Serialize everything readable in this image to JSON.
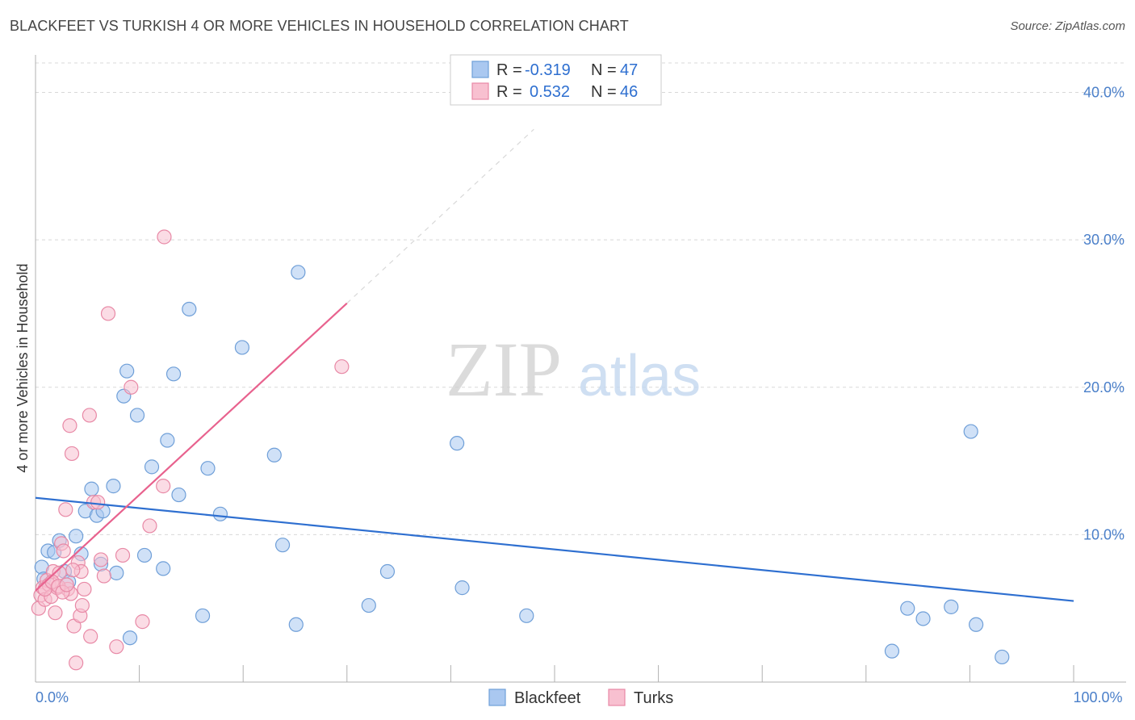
{
  "title": "BLACKFEET VS TURKISH 4 OR MORE VEHICLES IN HOUSEHOLD CORRELATION CHART",
  "source": "Source: ZipAtlas.com",
  "watermark": {
    "zip": "ZIP",
    "atlas": "atlas"
  },
  "legend": {
    "r_label": "R =",
    "n_label": "N =",
    "blackfeet": {
      "r": "-0.319",
      "n": "47"
    },
    "turks": {
      "r": "0.532",
      "n": "46"
    }
  },
  "chart_data": {
    "type": "scatter",
    "xlabel": "",
    "ylabel": "4 or more Vehicles in Household",
    "xlim": [
      0,
      100
    ],
    "ylim": [
      0,
      42
    ],
    "x_tick_labels": [
      {
        "value": 0,
        "label": "0.0%"
      },
      {
        "value": 100,
        "label": "100.0%"
      }
    ],
    "y_tick_labels": [
      {
        "value": 10,
        "label": "10.0%"
      },
      {
        "value": 20,
        "label": "20.0%"
      },
      {
        "value": 30,
        "label": "30.0%"
      },
      {
        "value": 40,
        "label": "40.0%"
      }
    ],
    "series": [
      {
        "name": "Blackfeet",
        "color": "#aac8f0",
        "stroke": "#6f9fd8",
        "line_color": "#2e6fd0",
        "trend": {
          "x0": 0,
          "y0": 12.5,
          "x1": 100,
          "y1": 5.5
        },
        "points": [
          [
            0.6,
            7.8
          ],
          [
            0.8,
            7.0
          ],
          [
            1.2,
            8.9
          ],
          [
            1.8,
            8.8
          ],
          [
            2.3,
            9.6
          ],
          [
            2.8,
            7.5
          ],
          [
            3.2,
            6.8
          ],
          [
            3.9,
            9.9
          ],
          [
            4.4,
            8.7
          ],
          [
            4.8,
            11.6
          ],
          [
            5.4,
            13.1
          ],
          [
            5.9,
            11.3
          ],
          [
            6.5,
            11.6
          ],
          [
            6.3,
            8.0
          ],
          [
            7.5,
            13.3
          ],
          [
            7.8,
            7.4
          ],
          [
            8.5,
            19.4
          ],
          [
            8.8,
            21.1
          ],
          [
            9.1,
            3.0
          ],
          [
            9.8,
            18.1
          ],
          [
            10.5,
            8.6
          ],
          [
            11.2,
            14.6
          ],
          [
            12.3,
            7.7
          ],
          [
            12.7,
            16.4
          ],
          [
            13.3,
            20.9
          ],
          [
            13.8,
            12.7
          ],
          [
            14.8,
            25.3
          ],
          [
            16.1,
            4.5
          ],
          [
            16.6,
            14.5
          ],
          [
            17.8,
            11.4
          ],
          [
            19.9,
            22.7
          ],
          [
            23.0,
            15.4
          ],
          [
            23.8,
            9.3
          ],
          [
            25.1,
            3.9
          ],
          [
            25.3,
            27.8
          ],
          [
            32.1,
            5.2
          ],
          [
            33.9,
            7.5
          ],
          [
            40.6,
            16.2
          ],
          [
            41.1,
            6.4
          ],
          [
            47.3,
            4.5
          ],
          [
            82.5,
            2.1
          ],
          [
            84.0,
            5.0
          ],
          [
            85.5,
            4.3
          ],
          [
            88.2,
            5.1
          ],
          [
            90.1,
            17.0
          ],
          [
            90.6,
            3.9
          ],
          [
            93.1,
            1.7
          ]
        ]
      },
      {
        "name": "Turks",
        "color": "#f8c0d0",
        "stroke": "#e889a6",
        "line_color": "#e8628e",
        "trend": {
          "x0": 0,
          "y0": 6.2,
          "x1": 30,
          "y1": 25.7
        },
        "trend_dashed": {
          "x0": 30,
          "y0": 25.7,
          "x1": 48,
          "y1": 37.5
        },
        "points": [
          [
            0.3,
            5.0
          ],
          [
            0.5,
            5.9
          ],
          [
            0.7,
            6.4
          ],
          [
            0.9,
            5.6
          ],
          [
            1.1,
            6.9
          ],
          [
            1.3,
            6.6
          ],
          [
            1.5,
            5.8
          ],
          [
            1.7,
            7.5
          ],
          [
            1.9,
            4.7
          ],
          [
            2.1,
            6.4
          ],
          [
            2.3,
            7.4
          ],
          [
            2.5,
            9.4
          ],
          [
            2.7,
            8.9
          ],
          [
            2.9,
            11.7
          ],
          [
            3.1,
            6.3
          ],
          [
            3.3,
            17.4
          ],
          [
            3.4,
            6.0
          ],
          [
            3.5,
            15.5
          ],
          [
            3.7,
            3.8
          ],
          [
            3.9,
            1.3
          ],
          [
            4.1,
            8.1
          ],
          [
            4.3,
            4.5
          ],
          [
            4.4,
            7.5
          ],
          [
            4.5,
            5.2
          ],
          [
            4.7,
            6.3
          ],
          [
            5.2,
            18.1
          ],
          [
            5.3,
            3.1
          ],
          [
            5.6,
            12.2
          ],
          [
            6.0,
            12.2
          ],
          [
            6.3,
            8.3
          ],
          [
            6.6,
            7.2
          ],
          [
            7.0,
            25.0
          ],
          [
            7.8,
            2.4
          ],
          [
            8.4,
            8.6
          ],
          [
            9.2,
            20.0
          ],
          [
            10.3,
            4.1
          ],
          [
            11.0,
            10.6
          ],
          [
            12.3,
            13.3
          ],
          [
            12.4,
            30.2
          ],
          [
            29.5,
            21.4
          ],
          [
            0.9,
            6.3
          ],
          [
            1.6,
            6.8
          ],
          [
            2.2,
            6.5
          ],
          [
            2.6,
            6.1
          ],
          [
            3.0,
            6.6
          ],
          [
            3.6,
            7.6
          ]
        ]
      }
    ]
  }
}
